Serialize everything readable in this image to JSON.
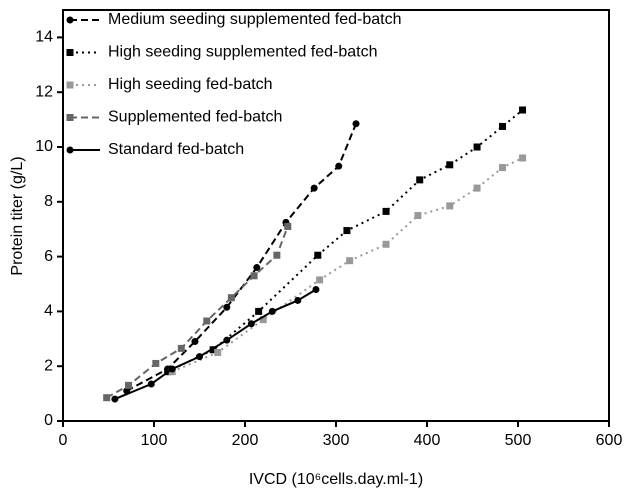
{
  "chart_data": {
    "type": "line",
    "x_label": "IVCD (10⁶cells.day.ml-1)",
    "y_label": "Protein titer (g/L)",
    "xlim": [
      0,
      600
    ],
    "xticks": [
      0,
      100,
      200,
      300,
      400,
      500,
      600
    ],
    "ylim": [
      0,
      15
    ],
    "yticks": [
      0,
      2,
      4,
      6,
      8,
      10,
      12,
      14
    ],
    "legend": "upper left",
    "series": [
      {
        "name": "Medium seeding supplemented fed-batch",
        "color": "#000000",
        "dash": "dashed",
        "marker": "circle",
        "x": [
          70,
          115,
          145,
          180,
          213,
          245,
          276,
          303,
          322
        ],
        "values": [
          1.1,
          1.9,
          2.9,
          4.15,
          5.6,
          7.25,
          8.5,
          9.3,
          10.85
        ]
      },
      {
        "name": "High seeding supplemented fed-batch",
        "color": "#000000",
        "dash": "dotted",
        "marker": "square",
        "x": [
          115,
          165,
          215,
          280,
          312,
          355,
          392,
          425,
          455,
          483,
          505
        ],
        "values": [
          1.8,
          2.6,
          4.0,
          6.05,
          6.95,
          7.65,
          8.8,
          9.35,
          10.0,
          10.75,
          11.35
        ]
      },
      {
        "name": "High seeding fed-batch",
        "color": "#999999",
        "dash": "dotted",
        "marker": "square",
        "x": [
          120,
          170,
          220,
          282,
          315,
          355,
          390,
          425,
          455,
          483,
          505
        ],
        "values": [
          1.8,
          2.5,
          3.7,
          5.15,
          5.85,
          6.45,
          7.5,
          7.85,
          8.5,
          9.25,
          9.6
        ]
      },
      {
        "name": "Supplemented fed-batch",
        "color": "#666666",
        "dash": "dashed",
        "marker": "square",
        "x": [
          48,
          72,
          102,
          130,
          158,
          185,
          210,
          235,
          247
        ],
        "values": [
          0.85,
          1.3,
          2.1,
          2.65,
          3.65,
          4.5,
          5.3,
          6.05,
          7.1
        ]
      },
      {
        "name": "Standard fed-batch",
        "color": "#000000",
        "dash": "solid",
        "marker": "circle",
        "x": [
          57,
          97,
          120,
          150,
          180,
          207,
          230,
          258,
          278
        ],
        "values": [
          0.8,
          1.35,
          1.9,
          2.35,
          2.95,
          3.55,
          4.0,
          4.4,
          4.8
        ]
      }
    ]
  }
}
